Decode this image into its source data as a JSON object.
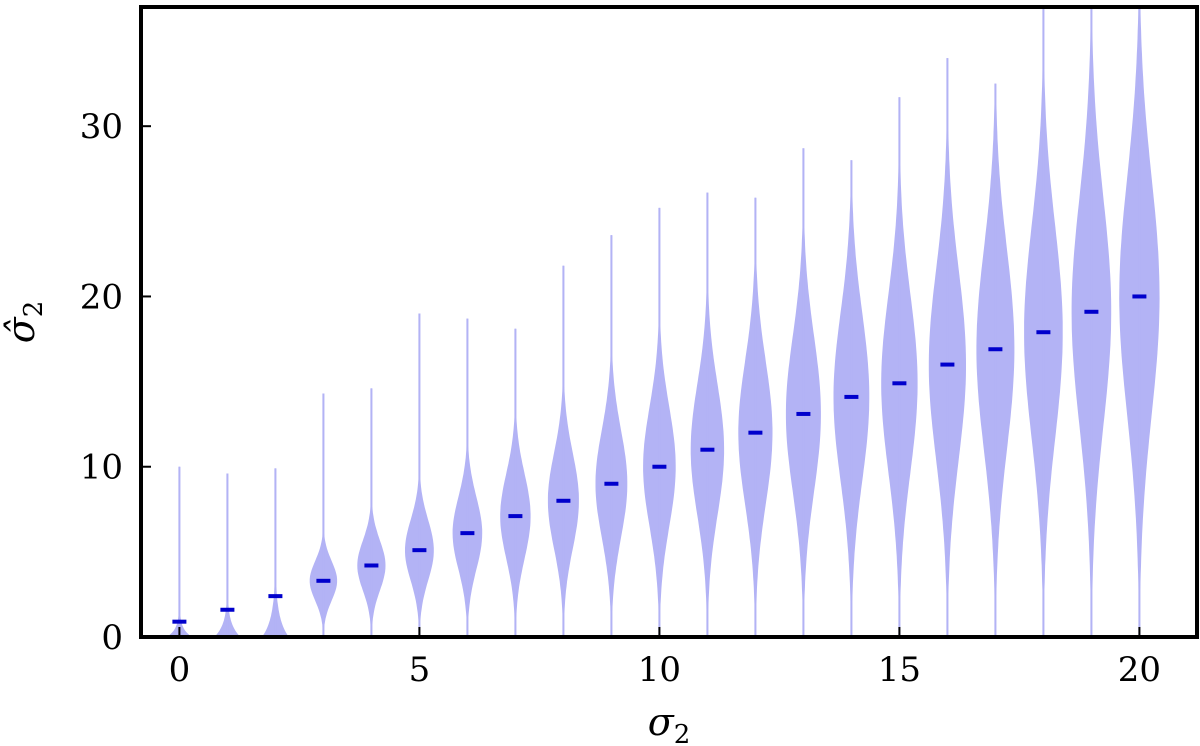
{
  "chart_data": {
    "type": "violin",
    "title": "",
    "xlabel": "σ",
    "xlabel_sub": "2",
    "ylabel": "σ̂",
    "ylabel_sub": "2",
    "xlim": [
      -0.8,
      21.2
    ],
    "ylim": [
      0,
      37
    ],
    "xticks": [
      0,
      5,
      10,
      15,
      20
    ],
    "yticks": [
      0,
      10,
      20,
      30
    ],
    "grid": false,
    "colors": {
      "violin": "#b3b3f5",
      "median": "#0000cc",
      "axis": "#000000"
    },
    "violins": [
      {
        "x": 0,
        "median": 0.9,
        "max": 10.0
      },
      {
        "x": 1,
        "median": 1.6,
        "max": 9.6
      },
      {
        "x": 2,
        "median": 2.4,
        "max": 9.9
      },
      {
        "x": 3,
        "median": 3.3,
        "max": 14.3
      },
      {
        "x": 4,
        "median": 4.2,
        "max": 14.6
      },
      {
        "x": 5,
        "median": 5.1,
        "max": 19.0
      },
      {
        "x": 6,
        "median": 6.1,
        "max": 18.7
      },
      {
        "x": 7,
        "median": 7.1,
        "max": 18.1
      },
      {
        "x": 8,
        "median": 8.0,
        "max": 21.8
      },
      {
        "x": 9,
        "median": 9.0,
        "max": 23.6
      },
      {
        "x": 10,
        "median": 10.0,
        "max": 25.2
      },
      {
        "x": 11,
        "median": 11.0,
        "max": 26.1
      },
      {
        "x": 12,
        "median": 12.0,
        "max": 25.8
      },
      {
        "x": 13,
        "median": 13.1,
        "max": 28.7
      },
      {
        "x": 14,
        "median": 14.1,
        "max": 28.0
      },
      {
        "x": 15,
        "median": 14.9,
        "max": 31.7
      },
      {
        "x": 16,
        "median": 16.0,
        "max": 34.0
      },
      {
        "x": 17,
        "median": 16.9,
        "max": 32.5
      },
      {
        "x": 18,
        "median": 17.9,
        "max": 37.0
      },
      {
        "x": 19,
        "median": 19.1,
        "max": 37.0
      },
      {
        "x": 20,
        "median": 20.0,
        "max": 37.0
      }
    ]
  }
}
